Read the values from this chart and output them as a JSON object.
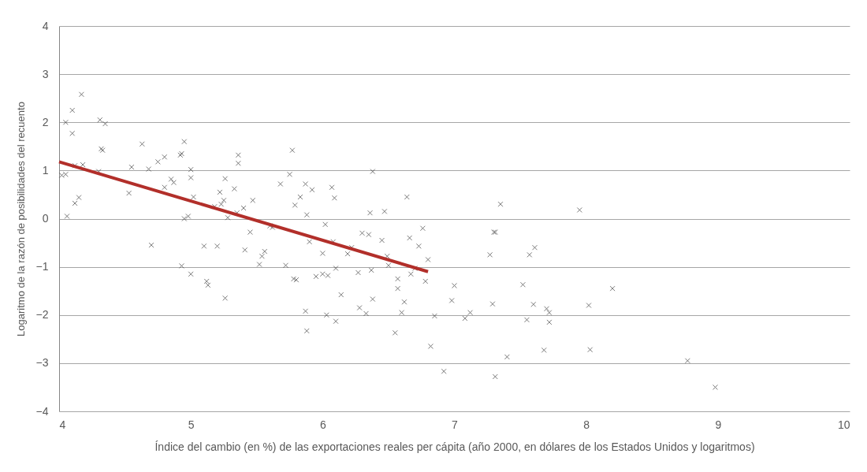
{
  "chart_data": {
    "type": "scatter",
    "xlabel": "Índice del cambio (en %) de las exportaciones reales per cápita (año 2000, en dólares de los Estados Unidos y logaritmos)",
    "ylabel": "Logaritmo de la razón de posibilidades del recuento",
    "xlim": [
      4,
      10
    ],
    "xticks": [
      4,
      5,
      6,
      7,
      8,
      9,
      10
    ],
    "ylim": [
      -4,
      4
    ],
    "yticks": [
      -4,
      -3,
      -2,
      -1,
      0,
      1,
      2,
      3,
      4
    ],
    "grid": "y",
    "marker": "cross",
    "series": [
      {
        "color": "#404040",
        "x": [
          4.02,
          4.05,
          4.05,
          4.06,
          4.1,
          4.1,
          4.12,
          4.12,
          4.15,
          4.17,
          4.18,
          4.3,
          4.31,
          4.32,
          4.33,
          4.35,
          4.53,
          4.55,
          4.63,
          4.68,
          4.7,
          4.75,
          4.8,
          4.8,
          4.85,
          4.87,
          4.92,
          4.93,
          4.93,
          4.95,
          4.95,
          4.98,
          5.0,
          5.0,
          5.0,
          5.02,
          5.1,
          5.12,
          5.13,
          5.18,
          5.2,
          5.22,
          5.23,
          5.25,
          5.26,
          5.26,
          5.28,
          5.33,
          5.35,
          5.36,
          5.36,
          5.4,
          5.41,
          5.45,
          5.47,
          5.52,
          5.54,
          5.56,
          5.6,
          5.62,
          5.68,
          5.72,
          5.75,
          5.77,
          5.78,
          5.79,
          5.8,
          5.83,
          5.87,
          5.87,
          5.88,
          5.88,
          5.9,
          5.92,
          5.95,
          6.0,
          6.0,
          6.02,
          6.03,
          6.04,
          6.07,
          6.08,
          6.09,
          6.1,
          6.1,
          6.14,
          6.19,
          6.22,
          6.27,
          6.28,
          6.3,
          6.33,
          6.35,
          6.36,
          6.37,
          6.38,
          6.38,
          6.45,
          6.47,
          6.49,
          6.5,
          6.55,
          6.57,
          6.57,
          6.6,
          6.62,
          6.64,
          6.66,
          6.67,
          6.7,
          6.73,
          6.76,
          6.78,
          6.8,
          6.82,
          6.85,
          6.92,
          6.98,
          7.0,
          7.08,
          7.12,
          7.27,
          7.29,
          7.3,
          7.31,
          7.31,
          7.35,
          7.4,
          7.52,
          7.55,
          7.57,
          7.6,
          7.61,
          7.68,
          7.7,
          7.72,
          7.72,
          7.95,
          8.02,
          8.03,
          8.2,
          8.77,
          8.98
        ],
        "values": [
          0.9,
          0.92,
          2.0,
          0.05,
          1.77,
          2.25,
          0.32,
          1.1,
          0.44,
          2.58,
          1.12,
          0.98,
          2.05,
          1.45,
          1.42,
          1.97,
          0.53,
          1.07,
          1.55,
          1.03,
          -0.55,
          1.18,
          1.28,
          0.65,
          0.82,
          0.75,
          1.32,
          1.35,
          -0.98,
          1.6,
          0.0,
          0.05,
          1.02,
          0.85,
          -1.15,
          0.45,
          -0.57,
          -1.3,
          -1.38,
          0.25,
          -0.57,
          0.55,
          0.3,
          0.38,
          -1.65,
          0.83,
          0.02,
          0.62,
          0.12,
          1.15,
          1.32,
          0.22,
          -0.65,
          -0.28,
          0.38,
          -0.95,
          -0.78,
          -0.68,
          -0.15,
          -0.18,
          0.72,
          -0.97,
          0.92,
          1.42,
          -1.25,
          0.28,
          -1.27,
          0.45,
          -1.92,
          0.72,
          0.08,
          -2.33,
          -0.48,
          0.6,
          -1.2,
          -0.72,
          -1.15,
          -0.12,
          -2.0,
          -1.18,
          0.65,
          -0.48,
          0.43,
          -1.03,
          -2.13,
          -1.58,
          -0.73,
          -0.6,
          -1.12,
          -1.85,
          -0.3,
          -1.97,
          -0.33,
          0.12,
          -1.07,
          0.98,
          -1.67,
          -0.45,
          0.15,
          -0.78,
          -0.97,
          -2.37,
          -1.45,
          -1.25,
          -1.95,
          -1.73,
          0.45,
          -0.4,
          -1.15,
          -1.03,
          -0.57,
          -0.2,
          -1.3,
          -0.85,
          -2.65,
          -2.02,
          -3.17,
          -1.7,
          -1.39,
          -2.07,
          -1.95,
          -0.75,
          -1.77,
          -0.28,
          -0.28,
          -3.28,
          0.3,
          -2.87,
          -1.37,
          -2.1,
          -0.75,
          -1.78,
          -0.6,
          -2.73,
          -1.87,
          -1.95,
          -2.15,
          0.18,
          -1.8,
          -2.72,
          -1.45,
          -2.95,
          -3.5
        ]
      },
      {
        "type": "line",
        "marker": "none",
        "color": "#b22f2a",
        "x": [
          4,
          6.8
        ],
        "values": [
          1.18,
          -1.1
        ]
      }
    ]
  }
}
